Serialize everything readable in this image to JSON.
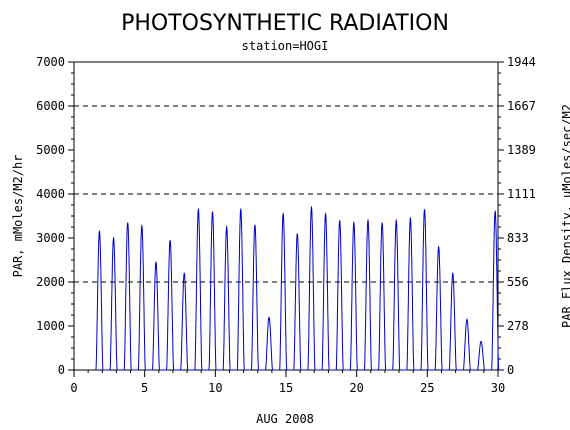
{
  "chart_data": {
    "type": "line",
    "title": "PHOTOSYNTHETIC RADIATION",
    "subtitle": "station=HOGI",
    "xlabel": "AUG 2008",
    "ylabel": "PAR, mMoles/M2/hr",
    "ylabel_right": "PAR Flux Density, uMoles/sec/M2",
    "xlim": [
      0,
      30
    ],
    "ylim": [
      0,
      7000
    ],
    "x_ticks": [
      0,
      5,
      10,
      15,
      20,
      25,
      30
    ],
    "y_ticks": [
      0,
      1000,
      2000,
      3000,
      4000,
      5000,
      6000,
      7000
    ],
    "y_ticks_right": [
      0,
      278,
      556,
      833,
      1111,
      1389,
      1667,
      1944
    ],
    "grid_dashed_y": [
      2000,
      4000,
      6000
    ],
    "line_color": "#0000cc",
    "series": [
      {
        "daily_peaks": [
          {
            "day": 1,
            "peak": 3150
          },
          {
            "day": 2,
            "peak": 3000
          },
          {
            "day": 3,
            "peak": 3350
          },
          {
            "day": 4,
            "peak": 3280
          },
          {
            "day": 5,
            "peak": 2450
          },
          {
            "day": 6,
            "peak": 2950
          },
          {
            "day": 7,
            "peak": 2200
          },
          {
            "day": 8,
            "peak": 3650
          },
          {
            "day": 9,
            "peak": 3600
          },
          {
            "day": 10,
            "peak": 3250
          },
          {
            "day": 11,
            "peak": 3650
          },
          {
            "day": 12,
            "peak": 3300
          },
          {
            "day": 13,
            "peak": 1200
          },
          {
            "day": 14,
            "peak": 3550
          },
          {
            "day": 15,
            "peak": 3100
          },
          {
            "day": 16,
            "peak": 3700
          },
          {
            "day": 17,
            "peak": 3550
          },
          {
            "day": 18,
            "peak": 3400
          },
          {
            "day": 19,
            "peak": 3350
          },
          {
            "day": 20,
            "peak": 3400
          },
          {
            "day": 21,
            "peak": 3350
          },
          {
            "day": 22,
            "peak": 3400
          },
          {
            "day": 23,
            "peak": 3450
          },
          {
            "day": 24,
            "peak": 3650
          },
          {
            "day": 25,
            "peak": 2800
          },
          {
            "day": 26,
            "peak": 2200
          },
          {
            "day": 27,
            "peak": 1150
          },
          {
            "day": 28,
            "peak": 650
          },
          {
            "day": 29,
            "peak": 3600
          }
        ]
      }
    ]
  }
}
